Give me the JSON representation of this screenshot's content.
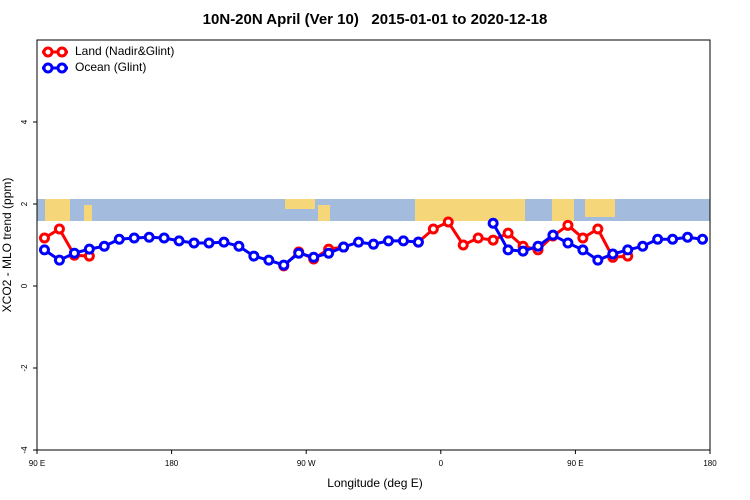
{
  "chart_data": {
    "type": "line",
    "title": "10N-20N April (Ver 10)   2015-01-01 to 2020-12-18",
    "x_label": "Longitude (deg E)",
    "y_label": "XCO2 - MLO trend (ppm)",
    "x": [
      95,
      105,
      115,
      125,
      135,
      145,
      155,
      165,
      175,
      185,
      195,
      205,
      215,
      225,
      235,
      245,
      255,
      265,
      275,
      285,
      295,
      305,
      315,
      325,
      335,
      345,
      355,
      365,
      375,
      385,
      395,
      405,
      415,
      425,
      435,
      445,
      455,
      465,
      475,
      485,
      495,
      505,
      515,
      525,
      535
    ],
    "series": [
      {
        "name": "Land (Nadir&Glint)",
        "color": "#ff0000",
        "values": [
          1.17,
          1.39,
          0.75,
          0.73,
          null,
          null,
          null,
          null,
          null,
          null,
          null,
          null,
          null,
          null,
          null,
          null,
          0.49,
          0.83,
          0.66,
          0.9,
          0.95,
          null,
          null,
          null,
          null,
          1.07,
          1.39,
          1.56,
          1.0,
          1.17,
          1.12,
          1.29,
          0.97,
          0.88,
          1.22,
          1.48,
          1.17,
          1.39,
          0.7,
          0.73,
          null,
          null,
          null,
          null,
          null
        ]
      },
      {
        "name": "Ocean (Glint)",
        "color": "#0000ff",
        "values": [
          0.88,
          0.63,
          0.8,
          0.9,
          0.97,
          1.14,
          1.17,
          1.19,
          1.17,
          1.1,
          1.05,
          1.05,
          1.07,
          0.97,
          0.73,
          0.63,
          0.51,
          0.8,
          0.7,
          0.8,
          0.95,
          1.07,
          1.02,
          1.1,
          1.1,
          1.07,
          null,
          null,
          null,
          null,
          1.53,
          0.88,
          0.85,
          0.97,
          1.24,
          1.05,
          0.88,
          0.63,
          0.78,
          0.88,
          0.97,
          1.14,
          1.14,
          1.19,
          1.14
        ]
      }
    ],
    "xlim": [
      90,
      540
    ],
    "xticks": [
      {
        "value": 90,
        "label": "90 E"
      },
      180,
      {
        "value": 270,
        "label": "90 W"
      },
      {
        "value": 360,
        "label": "0"
      },
      {
        "value": 450,
        "label": "90 E"
      },
      {
        "value": 540,
        "label": "180"
      }
    ],
    "ylim": [
      -4,
      6
    ],
    "yticks": [
      -4,
      -2,
      0,
      2,
      4
    ],
    "grid": false,
    "legend": "top-left"
  }
}
